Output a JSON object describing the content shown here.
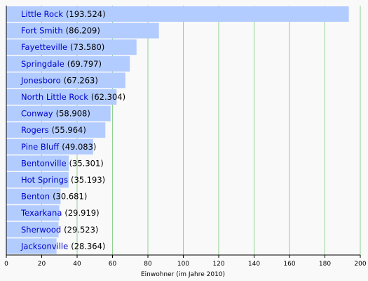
{
  "chart_data": {
    "type": "bar",
    "orientation": "horizontal",
    "xlabel": "Einwohner (im Jahre 2010)",
    "xlim": [
      0,
      200
    ],
    "xticks": [
      0,
      20,
      40,
      60,
      80,
      100,
      120,
      140,
      160,
      180,
      200
    ],
    "grid": true,
    "categories": [
      "Little Rock",
      "Fort Smith",
      "Fayetteville",
      "Springdale",
      "Jonesboro",
      "North Little Rock",
      "Conway",
      "Rogers",
      "Pine Bluff",
      "Bentonville",
      "Hot Springs",
      "Benton",
      "Texarkana",
      "Sherwood",
      "Jacksonville"
    ],
    "value_labels": [
      "(193.524)",
      "(86.209)",
      "(73.580)",
      "(69.797)",
      "(67.263)",
      "(62.304)",
      "(58.908)",
      "(55.964)",
      "(49.083)",
      "(35.301)",
      "(35.193)",
      "(30.681)",
      "(29.919)",
      "(29.523)",
      "(28.364)"
    ],
    "values": [
      193.524,
      86.209,
      73.58,
      69.797,
      67.263,
      62.304,
      58.908,
      55.964,
      49.083,
      35.301,
      35.193,
      30.681,
      29.919,
      29.523,
      28.364
    ],
    "colors": {
      "bar": "#b3ccff",
      "grid": "#8fd18f",
      "axis": "#000000",
      "label_link": "#0000cc",
      "background": "#f9f9f9"
    }
  }
}
